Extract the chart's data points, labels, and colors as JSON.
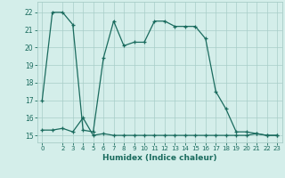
{
  "xlabel": "Humidex (Indice chaleur)",
  "line1_x": [
    0,
    1,
    2,
    3,
    4,
    5,
    6,
    7,
    8,
    9,
    10,
    11,
    12,
    13,
    14,
    15,
    16,
    17,
    18,
    19,
    20,
    21,
    22,
    23
  ],
  "line1_y": [
    17,
    22,
    22,
    21.3,
    15.3,
    15.2,
    19.4,
    21.5,
    20.1,
    20.3,
    20.3,
    21.5,
    21.5,
    21.2,
    21.2,
    21.2,
    20.5,
    17.5,
    16.5,
    15.2,
    15.2,
    15.1,
    15.0,
    15.0
  ],
  "line2_x": [
    0,
    1,
    2,
    3,
    4,
    5,
    6,
    7,
    8,
    9,
    10,
    11,
    12,
    13,
    14,
    15,
    16,
    17,
    18,
    19,
    20,
    21,
    22,
    23
  ],
  "line2_y": [
    15.3,
    15.3,
    15.4,
    15.2,
    16.0,
    15.0,
    15.1,
    15.0,
    15.0,
    15.0,
    15.0,
    15.0,
    15.0,
    15.0,
    15.0,
    15.0,
    15.0,
    15.0,
    15.0,
    15.0,
    15.0,
    15.1,
    15.0,
    15.0
  ],
  "line_color": "#1a6b5e",
  "bg_color": "#d4eeea",
  "grid_color": "#a8cdc8",
  "ylim": [
    14.6,
    22.6
  ],
  "xlim": [
    -0.5,
    23.5
  ],
  "yticks": [
    15,
    16,
    17,
    18,
    19,
    20,
    21,
    22
  ],
  "xticks": [
    0,
    2,
    3,
    4,
    5,
    6,
    7,
    8,
    9,
    10,
    11,
    12,
    13,
    14,
    15,
    16,
    17,
    18,
    19,
    20,
    21,
    22,
    23
  ],
  "xtick_labels": [
    "0",
    "2",
    "3",
    "4",
    "5",
    "6",
    "7",
    "8",
    "9",
    "10",
    "11",
    "12",
    "13",
    "14",
    "15",
    "16",
    "17",
    "18",
    "19",
    "20",
    "21",
    "22",
    "23"
  ],
  "marker": "+",
  "markersize": 3.5,
  "linewidth": 0.9
}
